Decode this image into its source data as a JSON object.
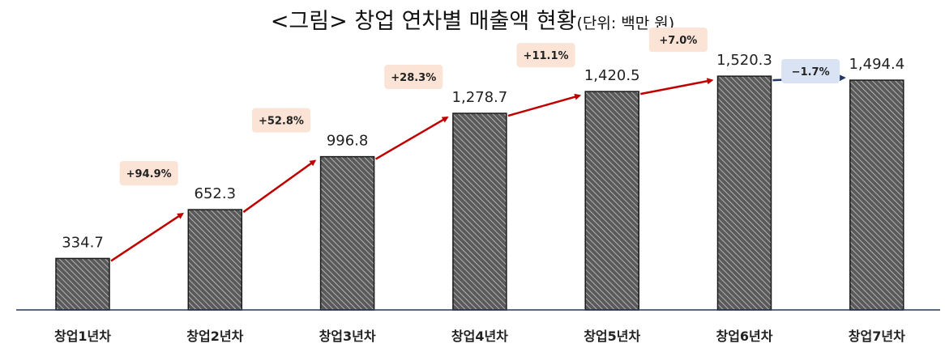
{
  "chart_data": {
    "type": "bar",
    "title": "<그림> 창업 연차별 매출액 현황",
    "unit_note": "(단위: 백만 원)",
    "categories": [
      "창업1년차",
      "창업2년차",
      "창업3년차",
      "창업4년차",
      "창업5년차",
      "창업6년차",
      "창업7년차"
    ],
    "values": [
      334.7,
      652.3,
      996.8,
      1278.7,
      1420.5,
      1520.3,
      1494.4
    ],
    "value_labels": [
      "334.7",
      "652.3",
      "996.8",
      "1,278.7",
      "1,420.5",
      "1,520.3",
      "1,494.4"
    ],
    "growth_rates": [
      "+94.9%",
      "+52.8%",
      "+28.3%",
      "+11.1%",
      "+7.0%",
      "−1.7%"
    ],
    "ylim": [
      0,
      1700
    ],
    "grid": false,
    "legend": "none",
    "colors": {
      "bar_fill": "#5a5a5a",
      "bar_stripe": "#c8c8c8",
      "positive_arrow": "#c00000",
      "negative_arrow": "#1f3864",
      "positive_badge": "#fbe3d6",
      "negative_badge": "#dae3f3",
      "axis": "#1f3864"
    }
  }
}
